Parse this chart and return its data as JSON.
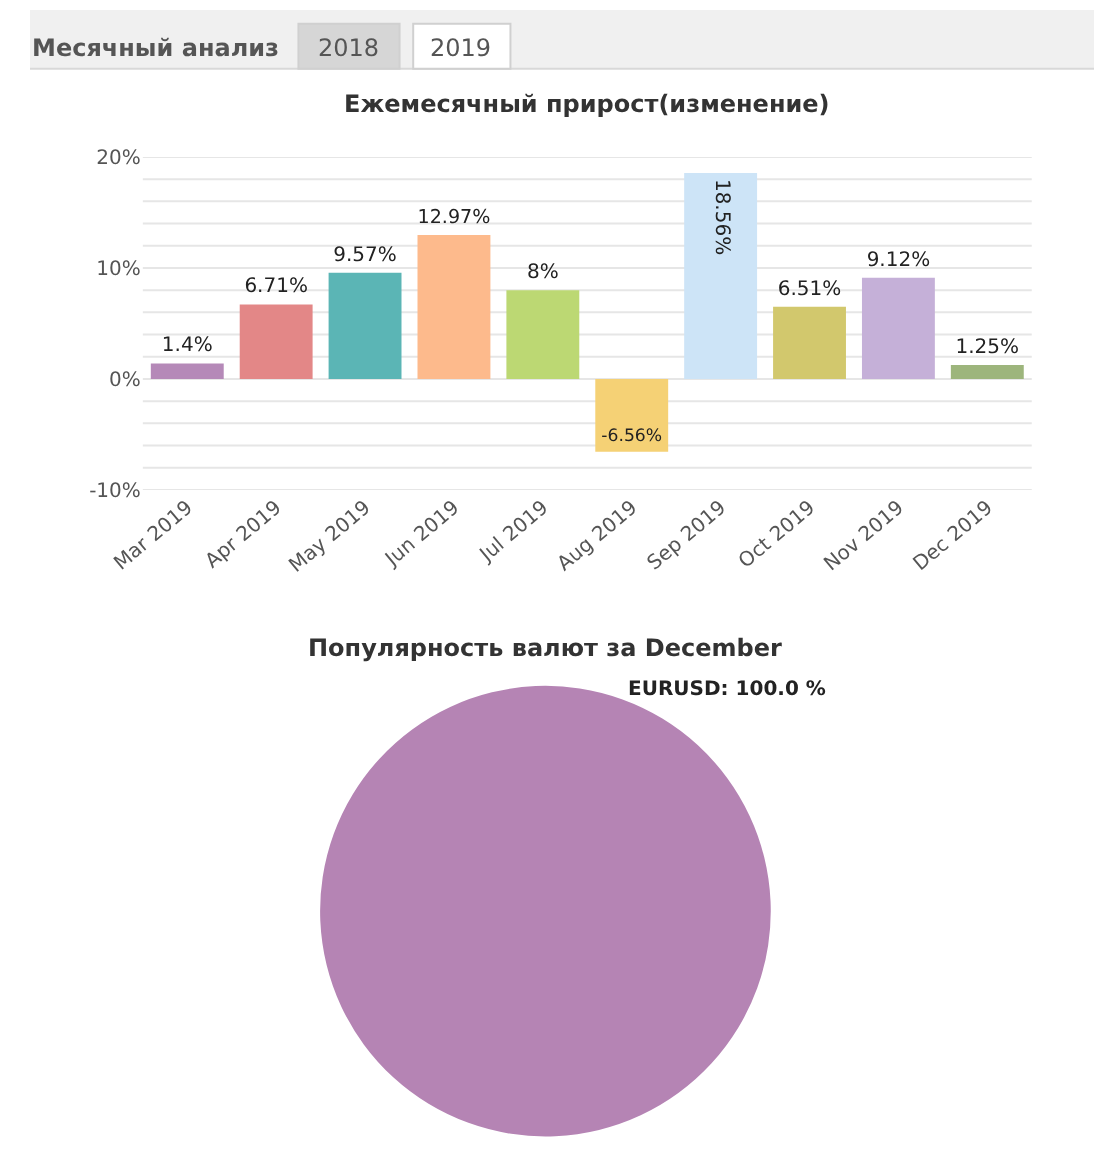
{
  "chart_data": [
    {
      "type": "bar",
      "title": "Ежемесячный прирост(изменение)",
      "annotations": [
        "Месячный анализ",
        "2018",
        "2019"
      ],
      "categories": [
        "Mar 2019",
        "Apr 2019",
        "May 2019",
        "Jun 2019",
        "Jul 2019",
        "Aug 2019",
        "Sep 2019",
        "Oct 2019",
        "Nov 2019",
        "Dec 2019"
      ],
      "values": [
        1.4,
        6.71,
        9.57,
        12.97,
        8,
        -6.56,
        18.56,
        6.51,
        9.12,
        1.25
      ],
      "value_labels": [
        "1.4%",
        "6.71%",
        "9.57%",
        "12.97%",
        "8%",
        "-6.56%",
        "18.56%",
        "6.51%",
        "9.12%",
        "1.25%"
      ],
      "colors": [
        "#b589b8",
        "#e38787",
        "#5bb5b5",
        "#fdba8c",
        "#bcd873",
        "#f5d175",
        "#cde4f7",
        "#d2c86d",
        "#c5b0d8",
        "#9db57c"
      ],
      "ylim": [
        -10,
        20
      ],
      "yticks": [
        {
          "value": -10,
          "label": "-10%"
        },
        {
          "value": -8,
          "label": null
        },
        {
          "value": -6,
          "label": null
        },
        {
          "value": -4,
          "label": null
        },
        {
          "value": -2,
          "label": null
        },
        {
          "value": 0,
          "label": "0%"
        },
        {
          "value": 2,
          "label": null
        },
        {
          "value": 4,
          "label": null
        },
        {
          "value": 6,
          "label": null
        },
        {
          "value": 8,
          "label": null
        },
        {
          "value": 10,
          "label": "10%"
        },
        {
          "value": 12,
          "label": null
        },
        {
          "value": 14,
          "label": null
        },
        {
          "value": 16,
          "label": null
        },
        {
          "value": 18,
          "label": null
        },
        {
          "value": 20,
          "label": "20%"
        }
      ],
      "grid": "y"
    },
    {
      "type": "pie",
      "title": "Популярность валют за December",
      "categories": [
        "EURUSD"
      ],
      "values": [
        100
      ],
      "value_labels": [
        "100.0 %"
      ],
      "colors": [
        "#b584b4"
      ]
    }
  ]
}
